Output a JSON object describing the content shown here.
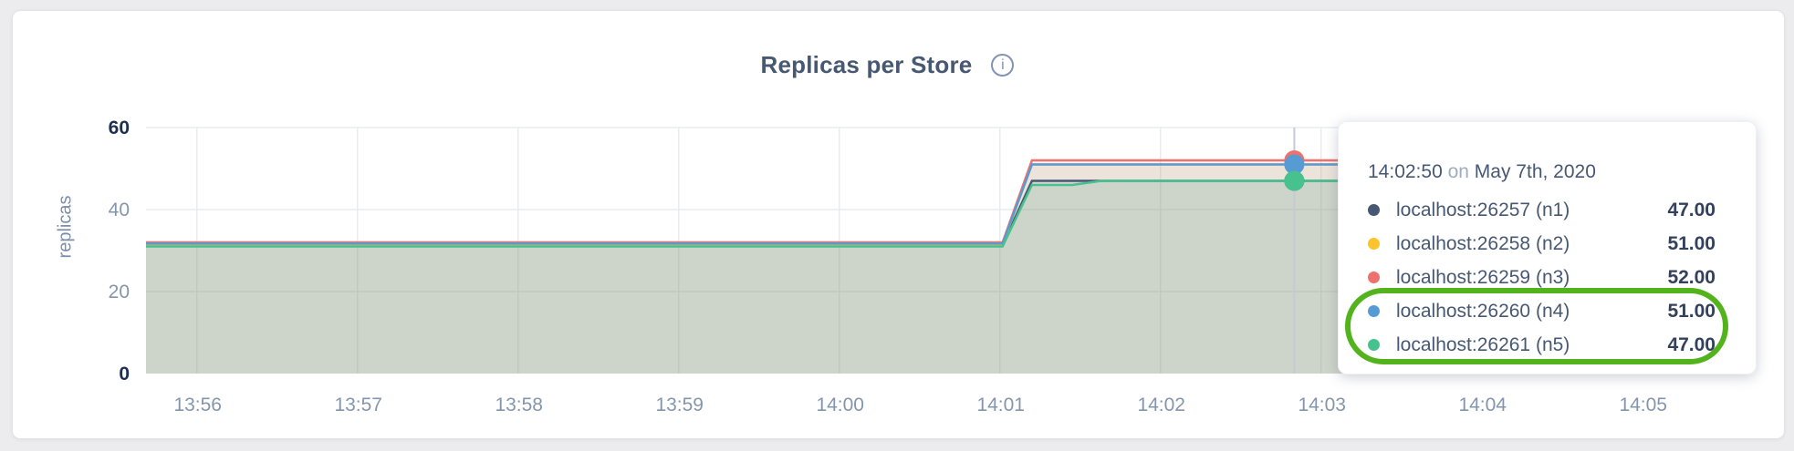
{
  "page": {
    "background": "#ecebed"
  },
  "header": {
    "title": "Replicas per Store",
    "info_glyph": "i"
  },
  "chart_data": {
    "type": "area",
    "title": "Replicas per Store",
    "ylabel": "replicas",
    "ylim": [
      0,
      60
    ],
    "yticks": [
      0,
      20,
      40,
      60
    ],
    "grid": true,
    "x_domain_seconds_after_13_55_41": [
      0,
      600
    ],
    "xticks": [
      {
        "s": 19,
        "label": "13:56"
      },
      {
        "s": 79,
        "label": "13:57"
      },
      {
        "s": 139,
        "label": "13:58"
      },
      {
        "s": 199,
        "label": "13:59"
      },
      {
        "s": 259,
        "label": "14:00"
      },
      {
        "s": 319,
        "label": "14:01"
      },
      {
        "s": 379,
        "label": "14:02"
      },
      {
        "s": 439,
        "label": "14:03"
      },
      {
        "s": 499,
        "label": "14:04"
      },
      {
        "s": 559,
        "label": "14:05"
      }
    ],
    "fill_opacity": 0.1,
    "series": [
      {
        "name": "localhost:26257 (n1)",
        "color": "#475872",
        "points": [
          [
            0,
            31.3
          ],
          [
            320,
            31.3
          ],
          [
            331,
            47
          ],
          [
            460,
            47
          ]
        ]
      },
      {
        "name": "localhost:26258 (n2)",
        "color": "#fdc32c",
        "points": [
          [
            0,
            31.5
          ],
          [
            320,
            31.5
          ],
          [
            331,
            51
          ],
          [
            460,
            51
          ]
        ]
      },
      {
        "name": "localhost:26259 (n3)",
        "color": "#ee716d",
        "points": [
          [
            0,
            32
          ],
          [
            320,
            32
          ],
          [
            331,
            52
          ],
          [
            460,
            52
          ]
        ]
      },
      {
        "name": "localhost:26260 (n4)",
        "color": "#579bd5",
        "points": [
          [
            0,
            31.7
          ],
          [
            320,
            31.7
          ],
          [
            331,
            51
          ],
          [
            460,
            51
          ]
        ]
      },
      {
        "name": "localhost:26261 (n5)",
        "color": "#47c28f",
        "points": [
          [
            0,
            31
          ],
          [
            320,
            31
          ],
          [
            331,
            46
          ],
          [
            346,
            46
          ],
          [
            357,
            47
          ],
          [
            460,
            47
          ]
        ]
      }
    ],
    "hover": {
      "s": 429,
      "time_label": "14:02:50",
      "line_color": "#c5cbd5",
      "dot_radius": 11
    },
    "grid_color": "#e8ebf2",
    "legend_position": "tooltip"
  },
  "tooltip": {
    "time": "14:02:50",
    "conjunction": "on",
    "date": "May 7th, 2020",
    "rows": [
      {
        "label": "localhost:26257 (n1)",
        "value": "47.00",
        "color": "#475872"
      },
      {
        "label": "localhost:26258 (n2)",
        "value": "51.00",
        "color": "#fdc32c"
      },
      {
        "label": "localhost:26259 (n3)",
        "value": "52.00",
        "color": "#ee716d"
      },
      {
        "label": "localhost:26260 (n4)",
        "value": "51.00",
        "color": "#579bd5"
      },
      {
        "label": "localhost:26261 (n5)",
        "value": "47.00",
        "color": "#47c28f"
      }
    ],
    "highlight": {
      "row_indexes": [
        3,
        4
      ],
      "color": "#52b31d"
    }
  }
}
